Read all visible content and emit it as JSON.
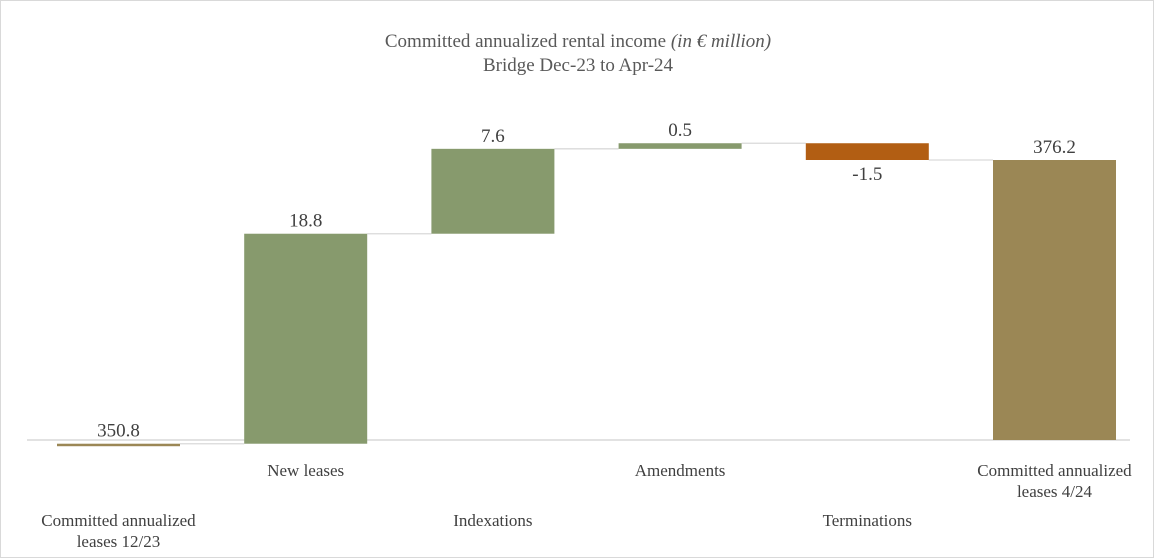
{
  "chart_data": {
    "type": "waterfall",
    "title": "Committed annualized rental income",
    "title_unit": "(in € million)",
    "subtitle": "Bridge Dec-23 to Apr-24",
    "categories": [
      [
        "Committed annualized",
        "leases 12/23"
      ],
      [
        "New leases"
      ],
      [
        "Indexations"
      ],
      [
        "Amendments"
      ],
      [
        "Terminations"
      ],
      [
        "Committed annualized",
        "leases 4/24"
      ]
    ],
    "values": [
      350.8,
      18.8,
      7.6,
      0.5,
      -1.5,
      376.2
    ],
    "value_labels": [
      "350.8",
      "18.8",
      "7.6",
      "0.5",
      "-1.5",
      "376.2"
    ],
    "kinds": [
      "total",
      "increase",
      "increase",
      "increase",
      "decrease",
      "total"
    ],
    "colors": {
      "total": "#9b8755",
      "increase": "#879a6d",
      "decrease": "#b25e13",
      "connector": "#d9d9d9",
      "axis": "#d9d9d9"
    },
    "ylim": [
      0,
      400
    ],
    "grid": false,
    "legend": "none"
  }
}
